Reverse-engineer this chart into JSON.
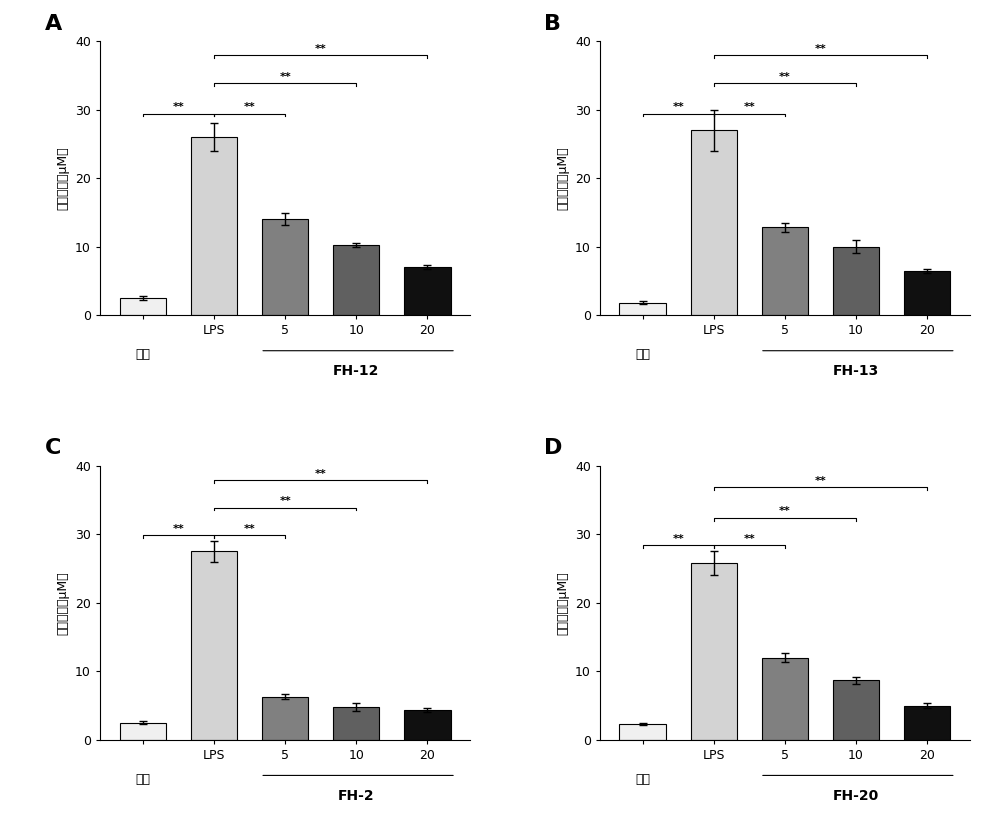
{
  "panels": [
    {
      "label": "A",
      "subtitle": "FH-12",
      "bars": [
        2.5,
        26.0,
        14.0,
        10.2,
        7.0
      ],
      "errors": [
        0.3,
        2.0,
        0.9,
        0.3,
        0.3
      ],
      "colors": [
        "#f0f0f0",
        "#d3d3d3",
        "#808080",
        "#606060",
        "#101010"
      ]
    },
    {
      "label": "B",
      "subtitle": "FH-13",
      "bars": [
        1.8,
        27.0,
        12.8,
        10.0,
        6.5
      ],
      "errors": [
        0.2,
        3.0,
        0.6,
        1.0,
        0.3
      ],
      "colors": [
        "#f0f0f0",
        "#d3d3d3",
        "#808080",
        "#606060",
        "#101010"
      ]
    },
    {
      "label": "C",
      "subtitle": "FH-2",
      "bars": [
        2.5,
        27.5,
        6.3,
        4.8,
        4.3
      ],
      "errors": [
        0.2,
        1.5,
        0.4,
        0.6,
        0.3
      ],
      "colors": [
        "#f0f0f0",
        "#d3d3d3",
        "#808080",
        "#606060",
        "#101010"
      ]
    },
    {
      "label": "D",
      "subtitle": "FH-20",
      "bars": [
        2.3,
        25.8,
        12.0,
        8.7,
        5.0
      ],
      "errors": [
        0.2,
        1.8,
        0.7,
        0.5,
        0.4
      ],
      "colors": [
        "#f0f0f0",
        "#d3d3d3",
        "#808080",
        "#606060",
        "#101010"
      ]
    }
  ],
  "xtick_labels": [
    "对照",
    "LPS",
    "5",
    "10",
    "20"
  ],
  "ylabel_chars": [
    "一",
    "氧",
    "化",
    "氮",
    "（",
    "μM",
    "）"
  ],
  "ylim": [
    0,
    40
  ],
  "yticks": [
    0,
    10,
    20,
    30,
    40
  ],
  "background_color": "#ffffff",
  "bar_width": 0.65,
  "sig_symbol": "**",
  "bracket_levels_AB": [
    29.0,
    29.0,
    33.5,
    37.5
  ],
  "bracket_levels_C": [
    29.5,
    29.5,
    33.5,
    37.5
  ],
  "bracket_levels_D": [
    28.0,
    28.0,
    32.0,
    36.5
  ]
}
